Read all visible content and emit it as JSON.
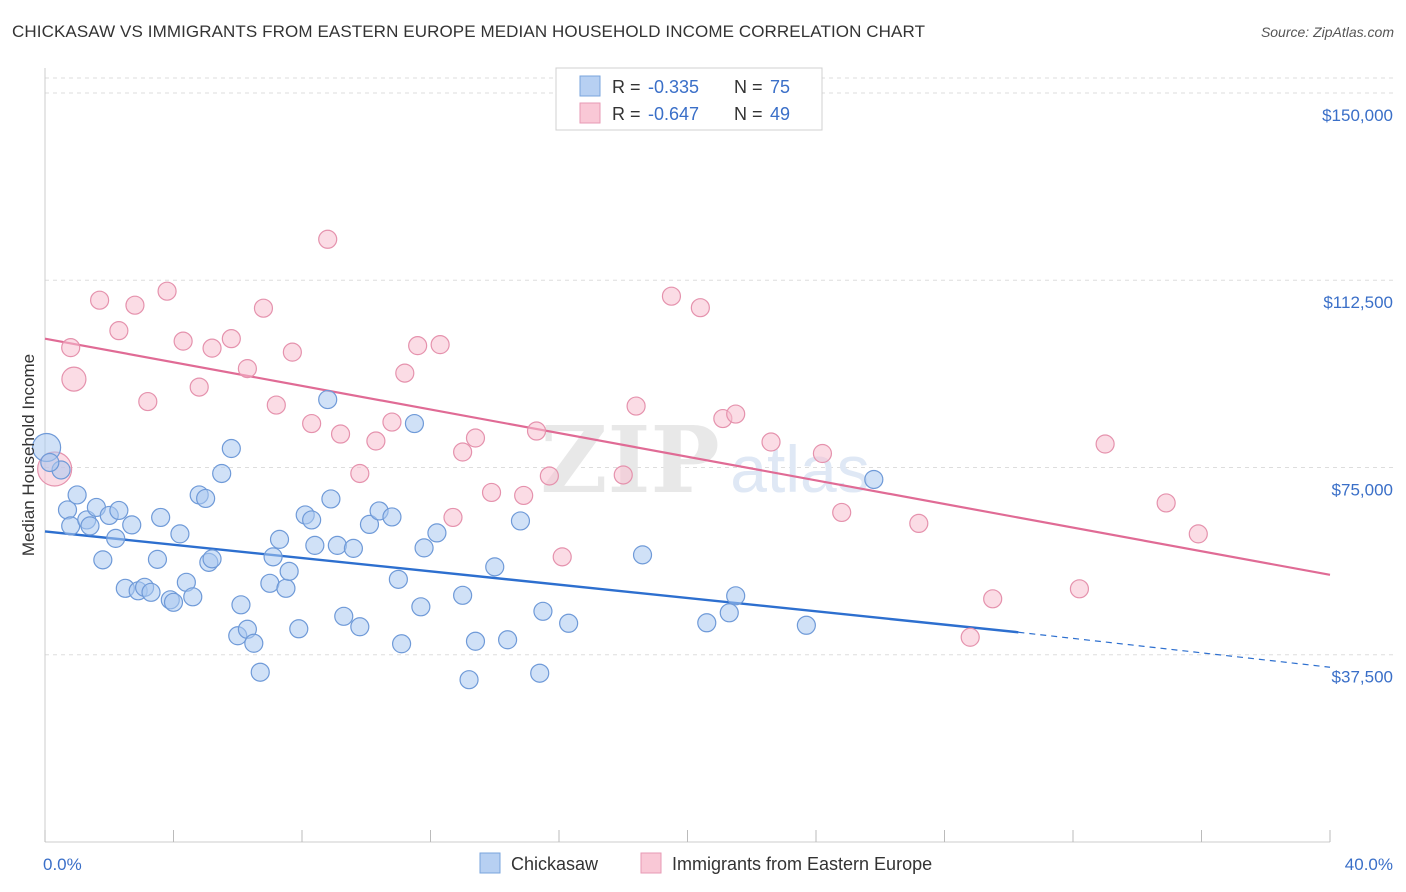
{
  "title": "CHICKASAW VS IMMIGRANTS FROM EASTERN EUROPE MEDIAN HOUSEHOLD INCOME CORRELATION CHART",
  "source": "Source: ZipAtlas.com",
  "watermark": {
    "zip": "ZIP",
    "atlas": "atlas"
  },
  "colors": {
    "blue_fill": "#a9c8f0",
    "blue_stroke": "#6f9ad8",
    "blue_line": "#2d6fcf",
    "pink_fill": "#f7bfd0",
    "pink_stroke": "#e592ad",
    "pink_line": "#e06b95",
    "axis_text": "#3a6fc8",
    "grid": "#dddddd"
  },
  "legend": {
    "rows": [
      {
        "r_label": "R = ",
        "r_value": "-0.335",
        "n_label": "N = ",
        "n_value": "75"
      },
      {
        "r_label": "R = ",
        "r_value": "-0.647",
        "n_label": "N = ",
        "n_value": "49"
      }
    ]
  },
  "bottom_legend": [
    "Chickasaw",
    "Immigrants from Eastern Europe"
  ],
  "chart_data": {
    "type": "scatter",
    "title": "CHICKASAW VS IMMIGRANTS FROM EASTERN EUROPE MEDIAN HOUSEHOLD INCOME CORRELATION CHART",
    "xlabel": "",
    "ylabel": "Median Household Income",
    "xlim": [
      0,
      40
    ],
    "ylim": [
      0,
      155000
    ],
    "x_tick_labels": [
      "0.0%",
      "40.0%"
    ],
    "y_ticks": [
      37500,
      75000,
      112500,
      150000
    ],
    "y_tick_labels": [
      "$37,500",
      "$75,000",
      "$112,500",
      "$150,000"
    ],
    "grid": true,
    "legend_position": "top-center",
    "series": [
      {
        "name": "Chickasaw",
        "r": -0.335,
        "n": 75,
        "trend": {
          "x0": 0,
          "y0": 62200,
          "x1": 30.3,
          "y1": 42000,
          "dash_to_x": 40,
          "dash_to_y": 35000
        },
        "points": [
          [
            0.05,
            79000
          ],
          [
            0.5,
            74500
          ],
          [
            0.7,
            66500
          ],
          [
            0.8,
            63300
          ],
          [
            1.0,
            69500
          ],
          [
            1.3,
            64500
          ],
          [
            1.4,
            63300
          ],
          [
            1.6,
            67000
          ],
          [
            1.8,
            56500
          ],
          [
            2.0,
            65400
          ],
          [
            2.2,
            60800
          ],
          [
            2.3,
            66400
          ],
          [
            2.5,
            50800
          ],
          [
            2.7,
            63500
          ],
          [
            2.9,
            50300
          ],
          [
            3.1,
            51000
          ],
          [
            3.3,
            50000
          ],
          [
            3.5,
            56600
          ],
          [
            3.6,
            65000
          ],
          [
            3.9,
            48500
          ],
          [
            4.0,
            48000
          ],
          [
            4.2,
            61700
          ],
          [
            4.4,
            52000
          ],
          [
            4.6,
            49100
          ],
          [
            4.8,
            69500
          ],
          [
            5.0,
            68800
          ],
          [
            5.1,
            56000
          ],
          [
            5.2,
            56700
          ],
          [
            5.5,
            73800
          ],
          [
            5.8,
            78800
          ],
          [
            6.0,
            41300
          ],
          [
            6.1,
            47500
          ],
          [
            6.3,
            42600
          ],
          [
            6.5,
            39800
          ],
          [
            6.7,
            34000
          ],
          [
            7.0,
            51800
          ],
          [
            7.1,
            57100
          ],
          [
            7.3,
            60600
          ],
          [
            7.5,
            50800
          ],
          [
            7.6,
            54200
          ],
          [
            7.9,
            42700
          ],
          [
            8.1,
            65500
          ],
          [
            8.3,
            64500
          ],
          [
            8.4,
            59400
          ],
          [
            8.8,
            88600
          ],
          [
            8.9,
            68700
          ],
          [
            9.1,
            59400
          ],
          [
            9.3,
            45200
          ],
          [
            9.6,
            58800
          ],
          [
            9.8,
            43100
          ],
          [
            10.1,
            63600
          ],
          [
            10.4,
            66300
          ],
          [
            10.8,
            65100
          ],
          [
            11.0,
            52600
          ],
          [
            11.1,
            39700
          ],
          [
            11.5,
            83800
          ],
          [
            11.7,
            47100
          ],
          [
            11.8,
            58900
          ],
          [
            12.2,
            61900
          ],
          [
            13.0,
            49400
          ],
          [
            13.2,
            32500
          ],
          [
            13.4,
            40200
          ],
          [
            14.0,
            55100
          ],
          [
            14.4,
            40500
          ],
          [
            14.8,
            64300
          ],
          [
            15.4,
            33800
          ],
          [
            15.5,
            46200
          ],
          [
            16.3,
            43800
          ],
          [
            18.6,
            57500
          ],
          [
            20.6,
            43900
          ],
          [
            21.3,
            45900
          ],
          [
            21.5,
            49300
          ],
          [
            23.7,
            43400
          ],
          [
            25.8,
            72600
          ],
          [
            0.15,
            76000
          ]
        ]
      },
      {
        "name": "Immigrants from Eastern Europe",
        "r": -0.647,
        "n": 49,
        "trend": {
          "x0": 0,
          "y0": 100800,
          "x1": 40,
          "y1": 53500
        },
        "points": [
          [
            0.3,
            74700
          ],
          [
            0.8,
            99000
          ],
          [
            0.9,
            92700
          ],
          [
            1.7,
            108500
          ],
          [
            2.3,
            102400
          ],
          [
            3.2,
            88200
          ],
          [
            2.8,
            107500
          ],
          [
            3.8,
            110300
          ],
          [
            4.3,
            100300
          ],
          [
            4.8,
            91100
          ],
          [
            5.2,
            98900
          ],
          [
            5.8,
            100800
          ],
          [
            6.3,
            94800
          ],
          [
            6.8,
            106900
          ],
          [
            7.2,
            87500
          ],
          [
            7.7,
            98100
          ],
          [
            8.3,
            83800
          ],
          [
            8.8,
            120700
          ],
          [
            9.2,
            81700
          ],
          [
            9.8,
            73800
          ],
          [
            10.3,
            80300
          ],
          [
            10.8,
            84100
          ],
          [
            11.2,
            93900
          ],
          [
            11.6,
            99400
          ],
          [
            12.3,
            99600
          ],
          [
            12.7,
            65000
          ],
          [
            13.0,
            78100
          ],
          [
            13.4,
            80900
          ],
          [
            13.9,
            70000
          ],
          [
            14.9,
            69400
          ],
          [
            15.3,
            82300
          ],
          [
            15.7,
            73300
          ],
          [
            16.1,
            57100
          ],
          [
            18.0,
            73500
          ],
          [
            18.4,
            87300
          ],
          [
            19.5,
            109300
          ],
          [
            20.4,
            107000
          ],
          [
            21.1,
            84800
          ],
          [
            21.5,
            85700
          ],
          [
            22.6,
            80100
          ],
          [
            24.2,
            77800
          ],
          [
            24.8,
            66000
          ],
          [
            27.2,
            63800
          ],
          [
            28.8,
            41000
          ],
          [
            29.5,
            48700
          ],
          [
            32.2,
            50700
          ],
          [
            33.0,
            79700
          ],
          [
            34.9,
            67900
          ],
          [
            35.9,
            61700
          ]
        ]
      }
    ]
  }
}
